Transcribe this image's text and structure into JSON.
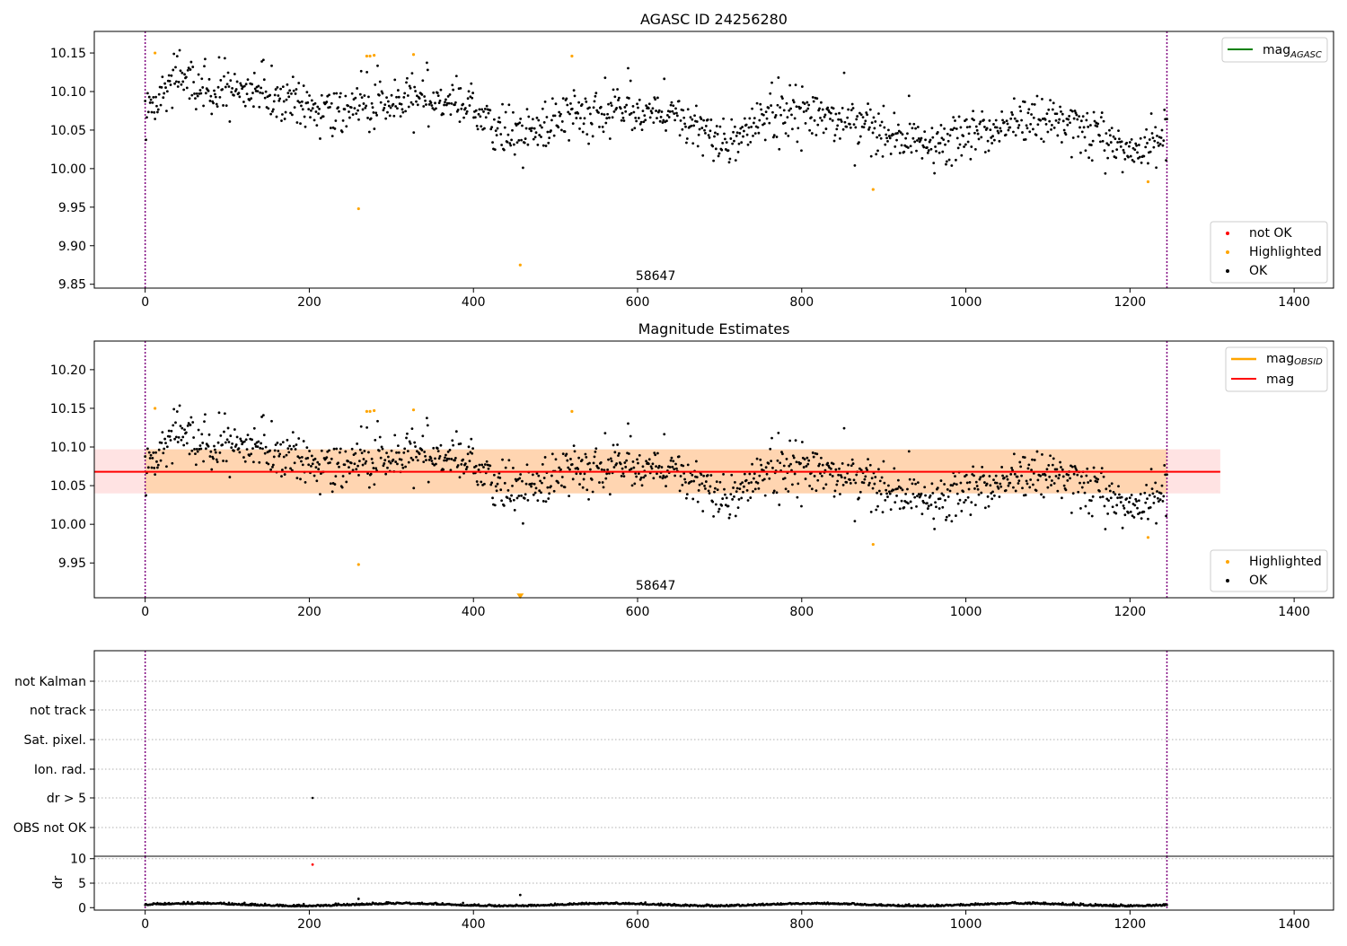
{
  "chart_data": [
    {
      "id": "agasc",
      "type": "scatter",
      "title": "AGASC ID 24256280",
      "xlabel": "",
      "ylabel": "",
      "xlim": [
        -62,
        1448
      ],
      "ylim": [
        9.845,
        10.178
      ],
      "xticks": [
        0,
        200,
        400,
        600,
        800,
        1000,
        1200,
        1400
      ],
      "yticks": [
        9.85,
        9.9,
        9.95,
        10.0,
        10.05,
        10.1,
        10.15
      ],
      "ytick_labels": [
        "9.85",
        "9.90",
        "9.95",
        "10.00",
        "10.05",
        "10.10",
        "10.15"
      ],
      "vlines": [
        0,
        1245
      ],
      "vline_color": "#800080",
      "annotation": "58647",
      "annotation_x": 622,
      "legend_top": {
        "location": "upper right",
        "entries": [
          {
            "label_base": "mag",
            "label_sub": "AGASC",
            "color": "#008000"
          }
        ]
      },
      "legend_bottom": {
        "location": "lower right",
        "entries": [
          {
            "label": "not OK",
            "color": "#ff0000"
          },
          {
            "label": "Highlighted",
            "color": "#ffa500"
          },
          {
            "label": "OK",
            "color": "#000000"
          }
        ]
      },
      "highlighted_points": [
        [
          12,
          10.15
        ],
        [
          270,
          10.146
        ],
        [
          274,
          10.146
        ],
        [
          279,
          10.147
        ],
        [
          327,
          10.148
        ],
        [
          520,
          10.146
        ],
        [
          260,
          9.948
        ],
        [
          457,
          9.875
        ],
        [
          887,
          9.973
        ],
        [
          1222,
          9.983
        ]
      ],
      "ok_series": {
        "n_points": 1245,
        "x_range": [
          0,
          1245
        ],
        "trend_x": [
          0,
          20,
          40,
          60,
          80,
          100,
          130,
          160,
          200,
          240,
          280,
          320,
          360,
          400,
          420,
          440,
          480,
          520,
          560,
          600,
          640,
          680,
          700,
          720,
          760,
          800,
          840,
          880,
          900,
          940,
          970,
          1000,
          1040,
          1080,
          1120,
          1160,
          1180,
          1200,
          1220,
          1245
        ],
        "trend_y": [
          10.085,
          10.095,
          10.12,
          10.11,
          10.095,
          10.1,
          10.105,
          10.095,
          10.08,
          10.07,
          10.09,
          10.095,
          10.09,
          10.08,
          10.06,
          10.05,
          10.045,
          10.075,
          10.075,
          10.075,
          10.07,
          10.055,
          10.035,
          10.04,
          10.075,
          10.075,
          10.065,
          10.06,
          10.045,
          10.035,
          10.03,
          10.045,
          10.055,
          10.06,
          10.06,
          10.045,
          10.03,
          10.02,
          10.03,
          10.05
        ],
        "scatter_sd": 0.02
      }
    },
    {
      "id": "estimates",
      "type": "scatter",
      "title": "Magnitude Estimates",
      "xlabel": "",
      "ylabel": "",
      "xlim": [
        -62,
        1448
      ],
      "ylim": [
        9.905,
        10.237
      ],
      "xticks": [
        0,
        200,
        400,
        600,
        800,
        1000,
        1200,
        1400
      ],
      "yticks": [
        9.95,
        10.0,
        10.05,
        10.1,
        10.15,
        10.2
      ],
      "ytick_labels": [
        "9.95",
        "10.00",
        "10.05",
        "10.10",
        "10.15",
        "10.20"
      ],
      "vlines": [
        0,
        1245
      ],
      "vline_color": "#800080",
      "annotation": "58647",
      "annotation_x": 622,
      "mag_line": {
        "y": 10.068,
        "color": "#ff0000"
      },
      "mag_band": {
        "x": [
          -62,
          1310
        ],
        "y": [
          10.04,
          10.097
        ],
        "color": "#ff8080"
      },
      "mag_obsid_band": {
        "x": [
          0,
          1245
        ],
        "y": [
          10.04,
          10.097
        ],
        "color": "#ffa500"
      },
      "legend_top": {
        "location": "upper right",
        "entries": [
          {
            "label_base": "mag",
            "label_sub": "OBSID",
            "color": "#ffa500"
          },
          {
            "label_base": "mag",
            "label_sub": "",
            "color": "#ff0000"
          }
        ]
      },
      "legend_bottom": {
        "location": "lower right",
        "entries": [
          {
            "label": "Highlighted",
            "color": "#ffa500"
          },
          {
            "label": "OK",
            "color": "#000000"
          }
        ]
      },
      "highlighted_points": [
        [
          12,
          10.15
        ],
        [
          270,
          10.146
        ],
        [
          274,
          10.146
        ],
        [
          279,
          10.147
        ],
        [
          327,
          10.148
        ],
        [
          520,
          10.146
        ],
        [
          260,
          9.948
        ],
        [
          887,
          9.974
        ],
        [
          1222,
          9.983
        ]
      ],
      "offscale_marker": {
        "x": 457,
        "y": 9.907
      },
      "ok_series": "same as agasc panel"
    },
    {
      "id": "flags",
      "type": "scatter",
      "title": "",
      "xlim": [
        -62,
        1448
      ],
      "categories": [
        "not Kalman",
        "not track",
        "Sat. pixel.",
        "Ion. rad.",
        "dr > 5",
        "OBS not OK"
      ],
      "vlines": [
        0,
        1245
      ],
      "vline_color": "#800080",
      "flag_points": [
        {
          "category": "dr > 5",
          "x": 204
        }
      ]
    },
    {
      "id": "dr",
      "type": "scatter",
      "title": "",
      "ylabel": "dr",
      "xlim": [
        -62,
        1448
      ],
      "ylim": [
        -0.5,
        10.5
      ],
      "xticks": [
        0,
        200,
        400,
        600,
        800,
        1000,
        1200,
        1400
      ],
      "yticks": [
        0,
        5,
        10
      ],
      "ytick_labels": [
        "0",
        "5",
        "10"
      ],
      "vlines": [
        0,
        1245
      ],
      "vline_color": "#800080",
      "outliers": [
        [
          204,
          8.8
        ],
        [
          260,
          1.8
        ],
        [
          457,
          2.6
        ]
      ],
      "outlier_color": "#ff0000",
      "baseline": {
        "mean": 0.5,
        "sd": 0.2
      }
    }
  ]
}
